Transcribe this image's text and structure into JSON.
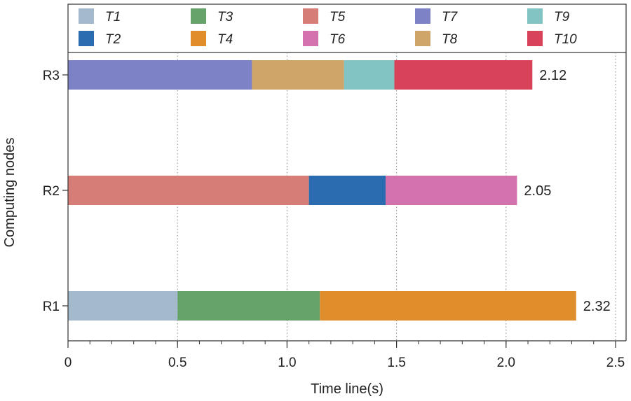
{
  "chart_data": {
    "type": "bar",
    "orientation": "horizontal-stacked",
    "xlabel": "Time line(s)",
    "ylabel": "Computing nodes",
    "xlim": [
      0,
      2.5
    ],
    "xticks": [
      "0",
      "0.5",
      "1.0",
      "1.5",
      "2.0",
      "2.5"
    ],
    "x_minor_step": 0.1,
    "grid": "vertical dotted",
    "legend_position": "top",
    "categories": [
      "R1",
      "R2",
      "R3"
    ],
    "legend": [
      {
        "name": "T1",
        "color": "#a5b9cc"
      },
      {
        "name": "T2",
        "color": "#2b6cb0"
      },
      {
        "name": "T3",
        "color": "#66a36a"
      },
      {
        "name": "T4",
        "color": "#e08e2b"
      },
      {
        "name": "T5",
        "color": "#d57d76"
      },
      {
        "name": "T6",
        "color": "#d472ad"
      },
      {
        "name": "T7",
        "color": "#7c82c5"
      },
      {
        "name": "T8",
        "color": "#cfa56a"
      },
      {
        "name": "T9",
        "color": "#82c4c3"
      },
      {
        "name": "T10",
        "color": "#d9435a"
      }
    ],
    "bars": [
      {
        "category": "R1",
        "total_label": "2.32",
        "segments": [
          {
            "task": "T1",
            "start": 0.0,
            "end": 0.5
          },
          {
            "task": "T3",
            "start": 0.5,
            "end": 1.15
          },
          {
            "task": "T4",
            "start": 1.15,
            "end": 2.32
          }
        ]
      },
      {
        "category": "R2",
        "total_label": "2.05",
        "segments": [
          {
            "task": "T5",
            "start": 0.0,
            "end": 1.1
          },
          {
            "task": "T2",
            "start": 1.1,
            "end": 1.45
          },
          {
            "task": "T6",
            "start": 1.45,
            "end": 2.05
          }
        ]
      },
      {
        "category": "R3",
        "total_label": "2.12",
        "segments": [
          {
            "task": "T7",
            "start": 0.0,
            "end": 0.84
          },
          {
            "task": "T8",
            "start": 0.84,
            "end": 1.26
          },
          {
            "task": "T9",
            "start": 1.26,
            "end": 1.49
          },
          {
            "task": "T10",
            "start": 1.49,
            "end": 2.12
          }
        ]
      }
    ]
  }
}
